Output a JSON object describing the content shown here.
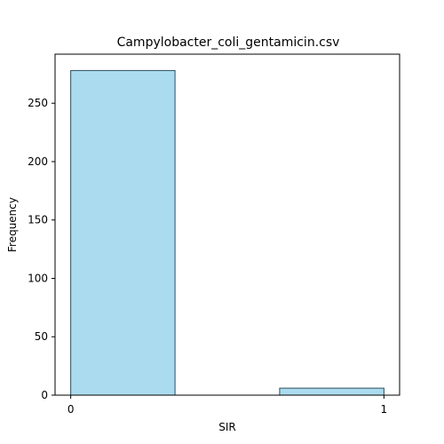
{
  "chart_data": {
    "type": "bar",
    "title": "Campylobacter_coli_gentamicin.csv",
    "xlabel": "SIR",
    "ylabel": "Frequency",
    "bins": [
      {
        "from": 0,
        "to": 0.333,
        "count": 278
      },
      {
        "from": 0.667,
        "to": 1,
        "count": 6
      }
    ],
    "xlim": [
      -0.05,
      1.05
    ],
    "ylim": [
      0,
      292
    ],
    "xticks": [
      0,
      1
    ],
    "yticks": [
      0,
      50,
      100,
      150,
      200,
      250
    ],
    "bar_color": "#abdbee",
    "bar_edge_color": "#2f4f5f",
    "grid": false,
    "legend": "none"
  }
}
